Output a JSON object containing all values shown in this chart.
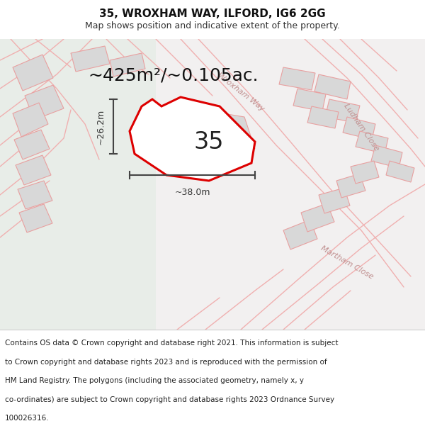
{
  "title_line1": "35, WROXHAM WAY, ILFORD, IG6 2GG",
  "title_line2": "Map shows position and indicative extent of the property.",
  "area_text": "~425m²/~0.105ac.",
  "number_label": "35",
  "width_label": "~38.0m",
  "height_label": "~26.2m",
  "footer_lines": [
    "Contains OS data © Crown copyright and database right 2021. This information is subject",
    "to Crown copyright and database rights 2023 and is reproduced with the permission of",
    "HM Land Registry. The polygons (including the associated geometry, namely x, y",
    "co-ordinates) are subject to Crown copyright and database rights 2023 Ordnance Survey",
    "100026316."
  ],
  "plot_fill_color": "#ffffff",
  "plot_stroke_color": "#dd0000",
  "road_color": "#f0b0b0",
  "block_fill_color": "#d8d8d8",
  "block_edge_color": "#e8a0a0",
  "street_label_color": "#c09090",
  "map_bg_left": "#e8ede8",
  "map_bg_right": "#f0f0f0",
  "title_fontsize": 11,
  "subtitle_fontsize": 9,
  "area_fontsize": 18,
  "number_fontsize": 24,
  "dim_fontsize": 9,
  "footer_fontsize": 7.5
}
